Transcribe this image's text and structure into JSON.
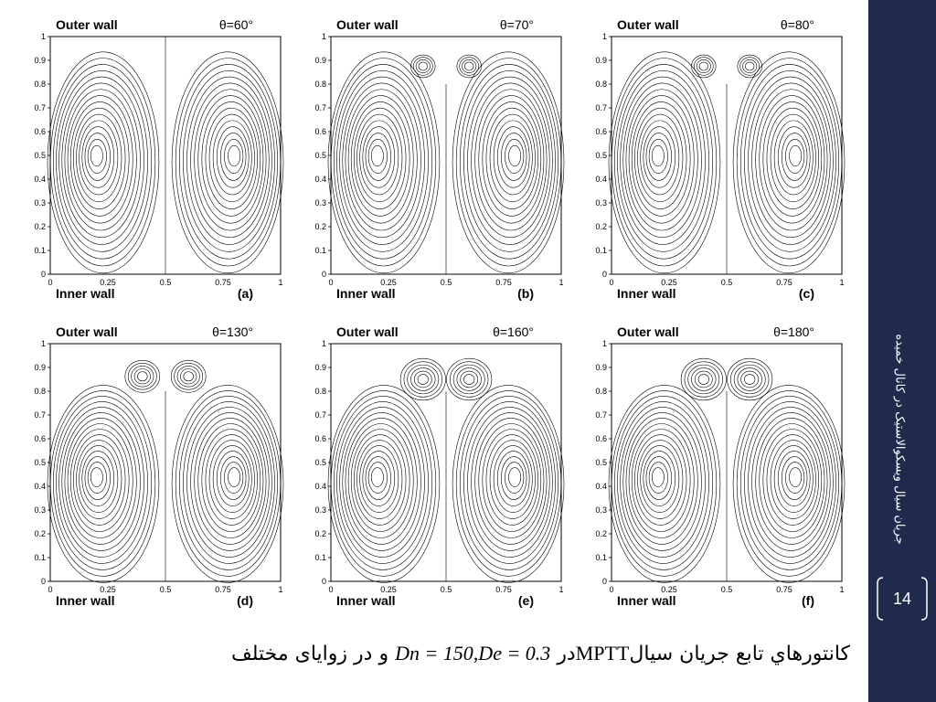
{
  "figure": {
    "top_label": "Outer wall",
    "bottom_label": "Inner wall",
    "x_ticks": [
      "0",
      "0.25",
      "0.5",
      "0.75",
      "1"
    ],
    "y_ticks": [
      "0",
      "0.1",
      "0.2",
      "0.3",
      "0.4",
      "0.5",
      "0.6",
      "0.7",
      "0.8",
      "0.9",
      "1"
    ],
    "panels": [
      {
        "id": "a",
        "label": "(a)",
        "angle": "θ=60°",
        "upper_vortex": "none"
      },
      {
        "id": "b",
        "label": "(b)",
        "angle": "θ=70°",
        "upper_vortex": "small"
      },
      {
        "id": "c",
        "label": "(c)",
        "angle": "θ=80°",
        "upper_vortex": "small"
      },
      {
        "id": "d",
        "label": "(d)",
        "angle": "θ=130°",
        "upper_vortex": "medium"
      },
      {
        "id": "e",
        "label": "(e)",
        "angle": "θ=160°",
        "upper_vortex": "large"
      },
      {
        "id": "f",
        "label": "(f)",
        "angle": "θ=180°",
        "upper_vortex": "large"
      }
    ]
  },
  "sidebar": {
    "vertical_title": "جریان سیال ویسکوالاستیک در کانال خمیده",
    "page_number": "14",
    "bg_color": "#1f2a4d"
  },
  "caption": {
    "part1": "کانتورهاي تابع جريان سيال",
    "model": "MPTT",
    "part2": "در",
    "params": "Dn = 150,De = 0.3",
    "part3": "و در زوایای مختلف"
  }
}
